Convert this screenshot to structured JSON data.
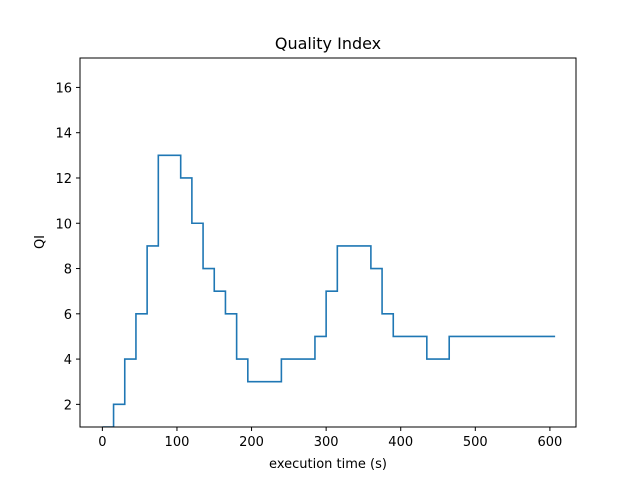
{
  "chart_data": {
    "type": "line",
    "title": "Quality Index",
    "xlabel": "execution time (s)",
    "ylabel": "QI",
    "xlim": [
      -30,
      635
    ],
    "ylim": [
      1,
      17.3
    ],
    "x_ticks": [
      0,
      100,
      200,
      300,
      400,
      500,
      600
    ],
    "y_ticks": [
      2,
      4,
      6,
      8,
      10,
      12,
      14,
      16
    ],
    "grid": false,
    "legend": "none",
    "colors": {
      "line": "#1f77b4",
      "axis": "#000000",
      "background": "#ffffff"
    },
    "series": [
      {
        "step": "post",
        "x": [
          0,
          15,
          30,
          45,
          60,
          75,
          105,
          120,
          135,
          150,
          165,
          180,
          195,
          240,
          285,
          300,
          315,
          360,
          375,
          390,
          435,
          465,
          607
        ],
        "y": [
          1,
          2,
          4,
          6,
          9,
          13,
          12,
          10,
          8,
          7,
          6,
          4,
          3,
          4,
          5,
          7,
          9,
          8,
          6,
          5,
          4,
          5,
          5
        ]
      }
    ]
  }
}
